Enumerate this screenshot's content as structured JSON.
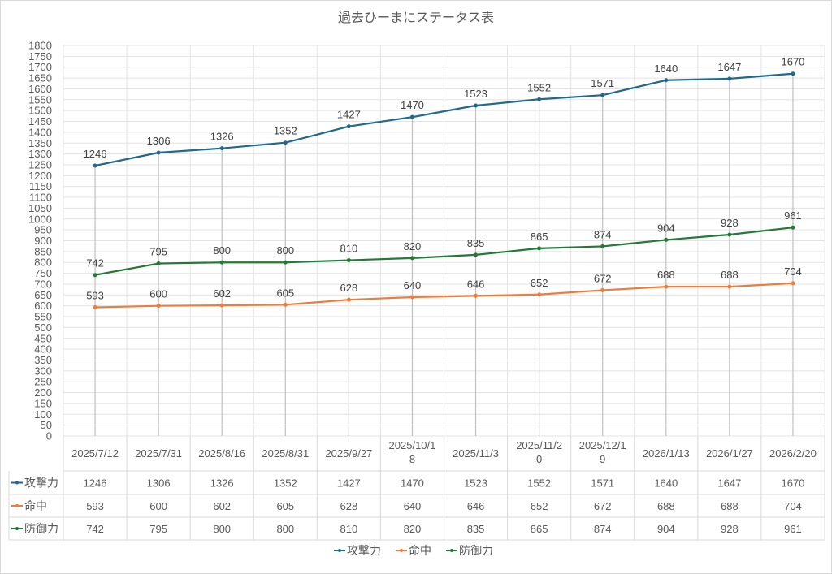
{
  "chart_data": {
    "type": "line",
    "title": "過去ひーまにステータス表",
    "categories": [
      "2025/7/12",
      "2025/7/31",
      "2025/8/16",
      "2025/8/31",
      "2025/9/27",
      "2025/10/18",
      "2025/11/3",
      "2025/11/20",
      "2025/12/19",
      "2026/1/13",
      "2026/1/27",
      "2026/2/20"
    ],
    "category_labels": [
      [
        "2025/7/12"
      ],
      [
        "2025/7/31"
      ],
      [
        "2025/8/16"
      ],
      [
        "2025/8/31"
      ],
      [
        "2025/9/27"
      ],
      [
        "2025/10/1",
        "8"
      ],
      [
        "2025/11/3"
      ],
      [
        "2025/11/2",
        "0"
      ],
      [
        "2025/12/1",
        "9"
      ],
      [
        "2026/1/13"
      ],
      [
        "2026/1/27"
      ],
      [
        "2026/2/20"
      ]
    ],
    "series": [
      {
        "name": "攻撃力",
        "color": "#1f6a8e",
        "values": [
          1246,
          1306,
          1326,
          1352,
          1427,
          1470,
          1523,
          1552,
          1571,
          1640,
          1647,
          1670
        ]
      },
      {
        "name": "命中",
        "color": "#f07c3b",
        "values": [
          593,
          600,
          602,
          605,
          628,
          640,
          646,
          652,
          672,
          688,
          688,
          704
        ]
      },
      {
        "name": "防御力",
        "color": "#237a36",
        "values": [
          742,
          795,
          800,
          800,
          810,
          820,
          835,
          865,
          874,
          904,
          928,
          961
        ]
      }
    ],
    "ylim": [
      0,
      1800
    ],
    "ystep": 50,
    "grid": true,
    "legend": "bottom",
    "data_table": true
  }
}
